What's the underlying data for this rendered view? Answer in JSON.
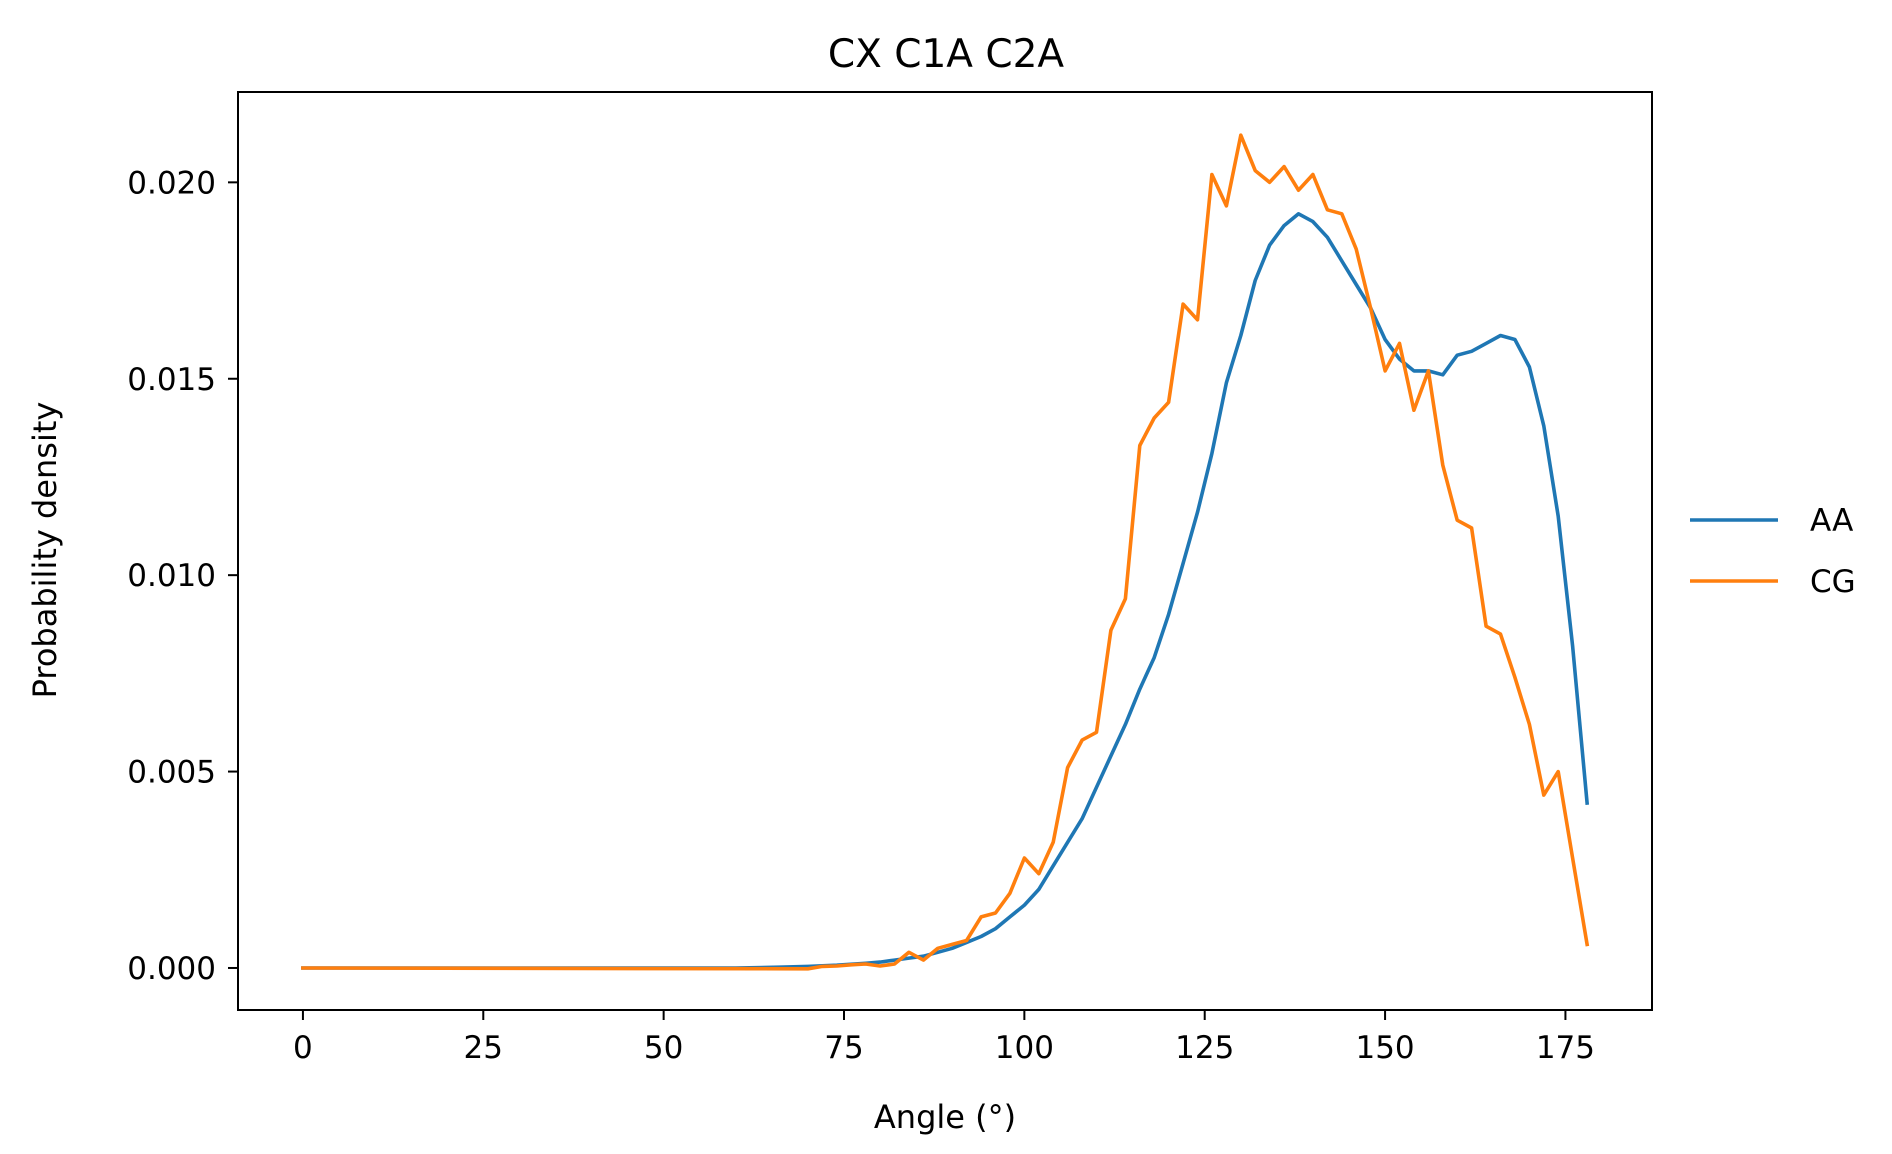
{
  "chart_data": {
    "type": "line",
    "title": "CX C1A C2A",
    "xlabel": "Angle (°)",
    "ylabel": "Probability density",
    "xlim": [
      -9,
      187
    ],
    "ylim": [
      -0.00107,
      0.0223
    ],
    "xticks": [
      0,
      25,
      50,
      75,
      100,
      125,
      150,
      175
    ],
    "yticks": [
      0.0,
      0.005,
      0.01,
      0.015,
      0.02
    ],
    "ytick_labels": [
      "0.000",
      "0.005",
      "0.010",
      "0.015",
      "0.020"
    ],
    "grid": false,
    "legend": {
      "placement": "right-outside"
    },
    "series": [
      {
        "name": "AA",
        "color": "#1f77b4",
        "x": [
          0,
          60,
          66,
          70,
          74,
          78,
          80,
          82,
          84,
          86,
          88,
          90,
          92,
          94,
          96,
          98,
          100,
          102,
          104,
          106,
          108,
          110,
          112,
          114,
          116,
          118,
          120,
          122,
          124,
          126,
          128,
          130,
          132,
          134,
          136,
          138,
          140,
          142,
          144,
          146,
          148,
          150,
          152,
          154,
          156,
          158,
          160,
          162,
          164,
          166,
          168,
          170,
          172,
          174,
          176,
          178
        ],
        "y": [
          0.0,
          0.0,
          2e-05,
          4e-05,
          7e-05,
          0.00012,
          0.00015,
          0.0002,
          0.00025,
          0.0003,
          0.0004,
          0.0005,
          0.00065,
          0.0008,
          0.001,
          0.0013,
          0.0016,
          0.002,
          0.0026,
          0.0032,
          0.0038,
          0.0046,
          0.0054,
          0.0062,
          0.0071,
          0.0079,
          0.009,
          0.0103,
          0.0116,
          0.0131,
          0.0149,
          0.0161,
          0.0175,
          0.0184,
          0.0189,
          0.0192,
          0.019,
          0.0186,
          0.018,
          0.0174,
          0.0168,
          0.016,
          0.0155,
          0.0152,
          0.0152,
          0.0151,
          0.0156,
          0.0157,
          0.0159,
          0.0161,
          0.016,
          0.0153,
          0.0138,
          0.0115,
          0.0082,
          0.0042
        ]
      },
      {
        "name": "CG",
        "color": "#ff7f0e",
        "x": [
          0,
          70,
          72,
          74,
          76,
          78,
          80,
          82,
          84,
          86,
          88,
          90,
          92,
          94,
          96,
          98,
          100,
          102,
          104,
          106,
          108,
          110,
          112,
          114,
          116,
          118,
          120,
          122,
          124,
          126,
          128,
          130,
          132,
          134,
          136,
          138,
          140,
          142,
          144,
          146,
          148,
          150,
          152,
          154,
          156,
          158,
          160,
          162,
          164,
          166,
          168,
          170,
          172,
          174,
          176,
          178
        ],
        "y": [
          0.0,
          -2e-05,
          4e-05,
          5e-05,
          8e-05,
          0.0001,
          5e-05,
          0.0001,
          0.0004,
          0.0002,
          0.0005,
          0.0006,
          0.0007,
          0.0013,
          0.0014,
          0.0019,
          0.0028,
          0.0024,
          0.0032,
          0.0051,
          0.0058,
          0.006,
          0.0086,
          0.0094,
          0.0133,
          0.014,
          0.0144,
          0.0169,
          0.0165,
          0.0202,
          0.0194,
          0.0212,
          0.0203,
          0.02,
          0.0204,
          0.0198,
          0.0202,
          0.0193,
          0.0192,
          0.0183,
          0.0168,
          0.0152,
          0.0159,
          0.0142,
          0.0152,
          0.0128,
          0.0114,
          0.0112,
          0.0087,
          0.0085,
          0.0074,
          0.0062,
          0.0044,
          0.005,
          0.0028,
          0.0006
        ]
      }
    ]
  }
}
